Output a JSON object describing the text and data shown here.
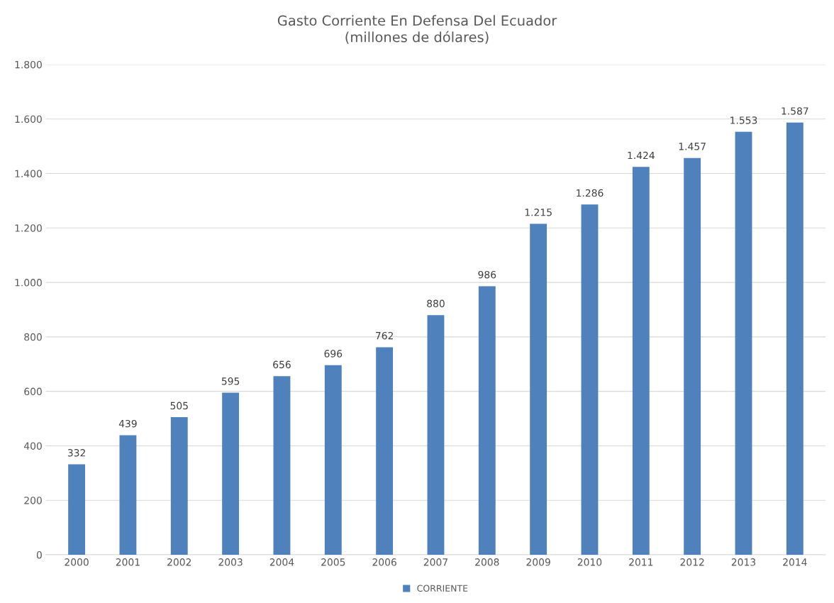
{
  "chart_data": {
    "type": "bar",
    "title": "Gasto Corriente En Defensa Del Ecuador\n(millones de dólares)",
    "categories": [
      "2000",
      "2001",
      "2002",
      "2003",
      "2004",
      "2005",
      "2006",
      "2007",
      "2008",
      "2009",
      "2010",
      "2011",
      "2012",
      "2013",
      "2014"
    ],
    "series": [
      {
        "name": "CORRIENTE",
        "color": "#4f81bd",
        "values": [
          332,
          439,
          505,
          595,
          656,
          696,
          762,
          880,
          986,
          1215,
          1286,
          1424,
          1457,
          1553,
          1587
        ],
        "value_labels": [
          "332",
          "439",
          "505",
          "595",
          "656",
          "696",
          "762",
          "880",
          "986",
          "1.215",
          "1.286",
          "1.424",
          "1.457",
          "1.553",
          "1.587"
        ]
      }
    ],
    "ylim": [
      0,
      1800
    ],
    "yticks": [
      0,
      200,
      400,
      600,
      800,
      {
        "value": 1000,
        "label": "1.000"
      },
      {
        "value": 1200,
        "label": "1.200"
      },
      {
        "value": 1400,
        "label": "1.400"
      },
      {
        "value": 1600,
        "label": "1.600"
      },
      {
        "value": 1800,
        "label": "1.800"
      }
    ],
    "grid": "y",
    "legend": "bottom"
  }
}
